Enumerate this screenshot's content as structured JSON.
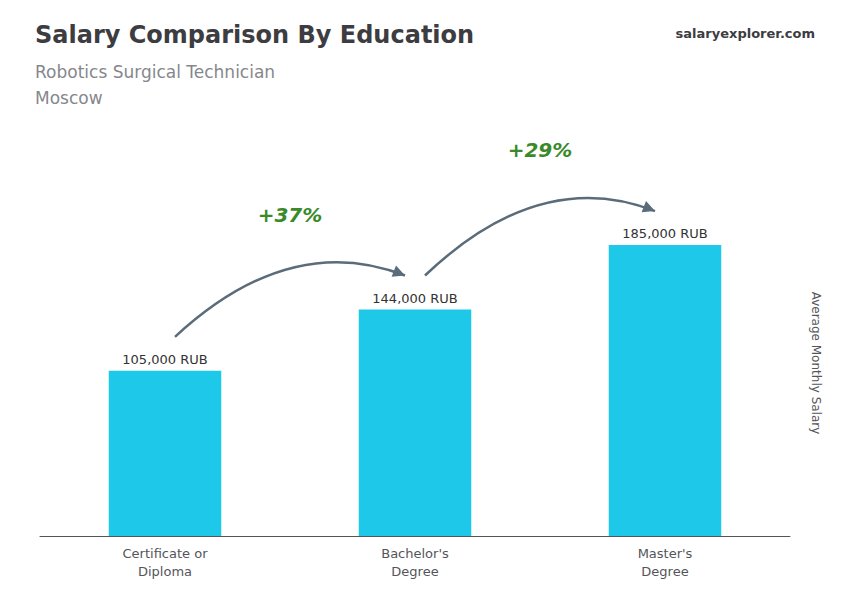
{
  "chart_data": {
    "type": "bar",
    "title": "Salary Comparison By Education",
    "subtitle": [
      "Robotics Surgical Technician",
      "Moscow"
    ],
    "source": "salaryexplorer.com",
    "ylabel": "Average Monthly Salary",
    "categories": [
      "Certificate or\nDiploma",
      "Bachelor's\nDegree",
      "Master's\nDegree"
    ],
    "values": [
      105000,
      144000,
      185000
    ],
    "value_labels": [
      "105,000 RUB",
      "144,000 RUB",
      "185,000 RUB"
    ],
    "data_labels": true,
    "annotations": [
      "+37%",
      "+29%"
    ],
    "color": "#1ec8e8",
    "ylim": [
      0,
      220000
    ],
    "grid": false,
    "tick_labels": "x"
  }
}
